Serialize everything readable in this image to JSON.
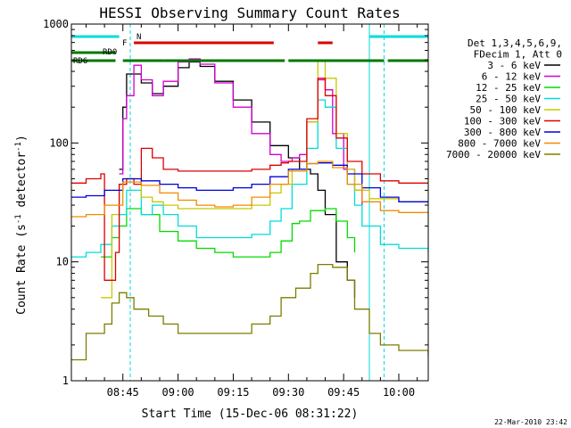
{
  "chart_data": {
    "type": "line",
    "title": "HESSI Observing Summary Count Rates",
    "xlabel": "Start Time (15-Dec-06 08:31:22)",
    "ylabel": "Count Rate (s-1 detector-1)",
    "ylabel_parts": {
      "prefix": "Count Rate (s",
      "sup1": "-1",
      "mid": " detector",
      "sup2": "-1",
      "suffix": ")"
    },
    "yscale": "log",
    "ylim": [
      1,
      1000
    ],
    "y_ticks": [
      {
        "value": 1,
        "label": "1"
      },
      {
        "value": 10,
        "label": "10"
      },
      {
        "value": 100,
        "label": "100"
      },
      {
        "value": 1000,
        "label": "1000"
      }
    ],
    "xlim": [
      "08:31",
      "10:08"
    ],
    "x_ticks": [
      {
        "time": "08:45",
        "label": "08:45"
      },
      {
        "time": "09:00",
        "label": "09:00"
      },
      {
        "time": "09:15",
        "label": "09:15"
      },
      {
        "time": "09:30",
        "label": "09:30"
      },
      {
        "time": "09:45",
        "label": "09:45"
      },
      {
        "time": "10:00",
        "label": "10:00"
      }
    ],
    "legend_header": [
      "Det 1,3,4,5,6,9,",
      "FDecim 1, Att 0"
    ],
    "legend_placement": "right",
    "series": [
      {
        "name": "3 - 6 keV",
        "color": "#000000",
        "points": [
          [
            "08:44",
            60
          ],
          [
            "08:45",
            200
          ],
          [
            "08:46",
            380
          ],
          [
            "08:50",
            320
          ],
          [
            "08:53",
            260
          ],
          [
            "08:56",
            300
          ],
          [
            "09:00",
            430
          ],
          [
            "09:03",
            480
          ],
          [
            "09:06",
            440
          ],
          [
            "09:10",
            330
          ],
          [
            "09:15",
            230
          ],
          [
            "09:20",
            150
          ],
          [
            "09:25",
            95
          ],
          [
            "09:30",
            75
          ],
          [
            "09:33",
            60
          ],
          [
            "09:36",
            55
          ],
          [
            "09:38",
            40
          ],
          [
            "09:40",
            25
          ],
          [
            "09:43",
            10
          ],
          [
            "09:46",
            7
          ],
          [
            "09:48",
            5
          ]
        ]
      },
      {
        "name": "6 - 12 keV",
        "color": "#d200d2",
        "points": [
          [
            "08:44",
            55
          ],
          [
            "08:45",
            160
          ],
          [
            "08:46",
            250
          ],
          [
            "08:48",
            450
          ],
          [
            "08:50",
            340
          ],
          [
            "08:53",
            250
          ],
          [
            "08:56",
            330
          ],
          [
            "09:00",
            480
          ],
          [
            "09:03",
            510
          ],
          [
            "09:06",
            460
          ],
          [
            "09:10",
            320
          ],
          [
            "09:15",
            200
          ],
          [
            "09:20",
            120
          ],
          [
            "09:25",
            80
          ],
          [
            "09:28",
            70
          ],
          [
            "09:31",
            75
          ],
          [
            "09:33",
            80
          ],
          [
            "09:35",
            150
          ],
          [
            "09:38",
            340
          ],
          [
            "09:40",
            280
          ],
          [
            "09:42",
            120
          ],
          [
            "09:45",
            60
          ],
          [
            "09:48",
            40
          ],
          [
            "09:50",
            30
          ]
        ]
      },
      {
        "name": "12 - 25 keV",
        "color": "#00dc00",
        "points": [
          [
            "08:39",
            11
          ],
          [
            "08:42",
            16
          ],
          [
            "08:44",
            20
          ],
          [
            "08:46",
            28
          ],
          [
            "08:50",
            25
          ],
          [
            "08:55",
            18
          ],
          [
            "09:00",
            15
          ],
          [
            "09:05",
            13
          ],
          [
            "09:10",
            12
          ],
          [
            "09:15",
            11
          ],
          [
            "09:20",
            11
          ],
          [
            "09:25",
            12
          ],
          [
            "09:28",
            15
          ],
          [
            "09:31",
            21
          ],
          [
            "09:33",
            22
          ],
          [
            "09:36",
            27
          ],
          [
            "09:40",
            28
          ],
          [
            "09:43",
            22
          ],
          [
            "09:46",
            16
          ],
          [
            "09:48",
            12
          ]
        ]
      },
      {
        "name": "25 - 50 keV",
        "color": "#00dcdc",
        "points": [
          [
            "08:31",
            11
          ],
          [
            "08:35",
            12
          ],
          [
            "08:39",
            14
          ],
          [
            "08:42",
            20
          ],
          [
            "08:44",
            25
          ],
          [
            "08:46",
            40
          ],
          [
            "08:50",
            25
          ],
          [
            "08:53",
            30
          ],
          [
            "08:56",
            25
          ],
          [
            "09:00",
            20
          ],
          [
            "09:05",
            16
          ],
          [
            "09:15",
            16
          ],
          [
            "09:20",
            17
          ],
          [
            "09:25",
            22
          ],
          [
            "09:28",
            28
          ],
          [
            "09:31",
            45
          ],
          [
            "09:35",
            90
          ],
          [
            "09:38",
            230
          ],
          [
            "09:40",
            200
          ],
          [
            "09:43",
            90
          ],
          [
            "09:46",
            45
          ],
          [
            "09:48",
            30
          ],
          [
            "09:50",
            20
          ],
          [
            "09:55",
            14
          ],
          [
            "10:00",
            13
          ],
          [
            "10:08",
            12
          ]
        ]
      },
      {
        "name": "50 - 100 keV",
        "color": "#c8c800",
        "points": [
          [
            "08:39",
            5
          ],
          [
            "08:42",
            25
          ],
          [
            "08:44",
            45
          ],
          [
            "08:46",
            50
          ],
          [
            "08:50",
            35
          ],
          [
            "08:53",
            32
          ],
          [
            "08:56",
            30
          ],
          [
            "09:00",
            28
          ],
          [
            "09:05",
            28
          ],
          [
            "09:10",
            28
          ],
          [
            "09:15",
            28
          ],
          [
            "09:20",
            30
          ],
          [
            "09:25",
            38
          ],
          [
            "09:28",
            45
          ],
          [
            "09:31",
            60
          ],
          [
            "09:35",
            150
          ],
          [
            "09:38",
            500
          ],
          [
            "09:40",
            350
          ],
          [
            "09:43",
            120
          ],
          [
            "09:46",
            60
          ],
          [
            "09:48",
            40
          ],
          [
            "09:52",
            34
          ],
          [
            "10:00",
            32
          ],
          [
            "10:08",
            32
          ]
        ]
      },
      {
        "name": "100 - 300 keV",
        "color": "#dc0000",
        "points": [
          [
            "08:31",
            46
          ],
          [
            "08:35",
            50
          ],
          [
            "08:39",
            55
          ],
          [
            "08:40",
            7
          ],
          [
            "08:43",
            12
          ],
          [
            "08:44",
            45
          ],
          [
            "08:46",
            50
          ],
          [
            "08:48",
            45
          ],
          [
            "08:50",
            90
          ],
          [
            "08:53",
            75
          ],
          [
            "08:56",
            60
          ],
          [
            "09:00",
            58
          ],
          [
            "09:05",
            58
          ],
          [
            "09:15",
            58
          ],
          [
            "09:20",
            60
          ],
          [
            "09:25",
            65
          ],
          [
            "09:28",
            68
          ],
          [
            "09:30",
            70
          ],
          [
            "09:35",
            160
          ],
          [
            "09:38",
            350
          ],
          [
            "09:40",
            250
          ],
          [
            "09:43",
            110
          ],
          [
            "09:46",
            70
          ],
          [
            "09:50",
            55
          ],
          [
            "09:55",
            48
          ],
          [
            "10:00",
            46
          ],
          [
            "10:08",
            46
          ]
        ]
      },
      {
        "name": "300 - 800 keV",
        "color": "#0000dc",
        "points": [
          [
            "08:31",
            35
          ],
          [
            "08:35",
            36
          ],
          [
            "08:40",
            40
          ],
          [
            "08:45",
            50
          ],
          [
            "08:50",
            48
          ],
          [
            "08:55",
            45
          ],
          [
            "09:00",
            42
          ],
          [
            "09:05",
            40
          ],
          [
            "09:10",
            40
          ],
          [
            "09:15",
            42
          ],
          [
            "09:20",
            45
          ],
          [
            "09:25",
            52
          ],
          [
            "09:30",
            60
          ],
          [
            "09:35",
            67
          ],
          [
            "09:38",
            68
          ],
          [
            "09:42",
            65
          ],
          [
            "09:46",
            55
          ],
          [
            "09:50",
            42
          ],
          [
            "09:55",
            35
          ],
          [
            "10:00",
            32
          ],
          [
            "10:08",
            31
          ]
        ]
      },
      {
        "name": "800 - 7000 keV",
        "color": "#f08c00",
        "points": [
          [
            "08:31",
            24
          ],
          [
            "08:35",
            25
          ],
          [
            "08:40",
            30
          ],
          [
            "08:45",
            47
          ],
          [
            "08:50",
            44
          ],
          [
            "08:55",
            38
          ],
          [
            "09:00",
            33
          ],
          [
            "09:05",
            30
          ],
          [
            "09:10",
            29
          ],
          [
            "09:15",
            30
          ],
          [
            "09:20",
            35
          ],
          [
            "09:25",
            45
          ],
          [
            "09:30",
            58
          ],
          [
            "09:35",
            67
          ],
          [
            "09:38",
            70
          ],
          [
            "09:42",
            62
          ],
          [
            "09:46",
            45
          ],
          [
            "09:50",
            32
          ],
          [
            "09:55",
            27
          ],
          [
            "10:00",
            26
          ],
          [
            "10:08",
            25
          ]
        ]
      },
      {
        "name": "7000 - 20000 keV",
        "color": "#7d7d00",
        "points": [
          [
            "08:31",
            1.5
          ],
          [
            "08:35",
            2.5
          ],
          [
            "08:38",
            2.5
          ],
          [
            "08:40",
            3
          ],
          [
            "08:42",
            4.5
          ],
          [
            "08:44",
            5.5
          ],
          [
            "08:46",
            5
          ],
          [
            "08:48",
            4
          ],
          [
            "08:52",
            3.5
          ],
          [
            "08:56",
            3
          ],
          [
            "09:00",
            2.5
          ],
          [
            "09:10",
            2.5
          ],
          [
            "09:20",
            3
          ],
          [
            "09:25",
            3.5
          ],
          [
            "09:28",
            5
          ],
          [
            "09:32",
            6
          ],
          [
            "09:36",
            8
          ],
          [
            "09:38",
            9.5
          ],
          [
            "09:42",
            9
          ],
          [
            "09:46",
            7
          ],
          [
            "09:48",
            4
          ],
          [
            "09:52",
            2.5
          ],
          [
            "09:55",
            2
          ],
          [
            "10:00",
            1.8
          ],
          [
            "10:08",
            1.6
          ]
        ]
      }
    ],
    "flag_bars": [
      {
        "label": "RD6",
        "color": "#007800",
        "segments": [
          [
            "08:31",
            "08:43"
          ],
          [
            "08:45",
            "08:56"
          ],
          [
            "08:56",
            "09:29"
          ],
          [
            "09:30",
            "09:56"
          ],
          [
            "09:57",
            "10:08"
          ]
        ]
      },
      {
        "label": "RD0",
        "color": "#007800",
        "segments": [
          [
            "08:31",
            "08:43"
          ]
        ]
      },
      {
        "label": "F",
        "color": "#dc0000",
        "segments": [
          [
            "08:48",
            "09:26"
          ],
          [
            "09:38",
            "09:42"
          ]
        ]
      },
      {
        "label": "N",
        "color": "#00dcdc",
        "segments": [
          [
            "08:31",
            "08:44"
          ],
          [
            "09:52",
            "10:08"
          ]
        ]
      }
    ],
    "vertical_lines": [
      {
        "time": "08:31",
        "style": "solid",
        "color": "#00dcdc"
      },
      {
        "time": "08:47",
        "style": "dashed",
        "color": "#00dcdc"
      },
      {
        "time": "09:52",
        "style": "solid",
        "color": "#00dcdc"
      },
      {
        "time": "09:56",
        "style": "dashed",
        "color": "#00dcdc"
      },
      {
        "time": "10:08",
        "style": "dashed",
        "color": "#00dcdc"
      }
    ],
    "timestamp": "22-Mar-2010 23:42"
  }
}
